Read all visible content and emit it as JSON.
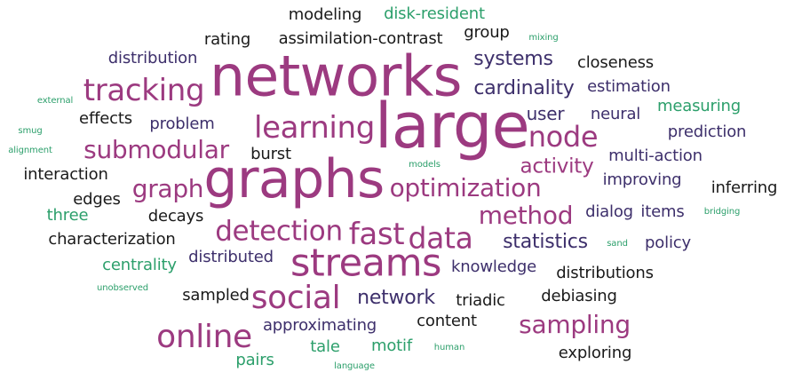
{
  "palette": {
    "purple": "#9c3a80",
    "indigo": "#3d2f6b",
    "dark": "#1a1a1a",
    "green": "#2c9f6b"
  },
  "words": [
    {
      "text": "large",
      "color": "purple",
      "weight": 100
    },
    {
      "text": "networks",
      "color": "purple",
      "weight": 95
    },
    {
      "text": "graphs",
      "color": "purple",
      "weight": 90
    },
    {
      "text": "streams",
      "color": "purple",
      "weight": 72
    },
    {
      "text": "online",
      "color": "purple",
      "weight": 55
    },
    {
      "text": "social",
      "color": "purple",
      "weight": 55
    },
    {
      "text": "tracking",
      "color": "purple",
      "weight": 50
    },
    {
      "text": "learning",
      "color": "purple",
      "weight": 50
    },
    {
      "text": "fast",
      "color": "purple",
      "weight": 50
    },
    {
      "text": "data",
      "color": "purple",
      "weight": 48
    },
    {
      "text": "node",
      "color": "purple",
      "weight": 46
    },
    {
      "text": "detection",
      "color": "purple",
      "weight": 46
    },
    {
      "text": "method",
      "color": "purple",
      "weight": 42
    },
    {
      "text": "optimization",
      "color": "purple",
      "weight": 42
    },
    {
      "text": "submodular",
      "color": "purple",
      "weight": 42
    },
    {
      "text": "graph",
      "color": "purple",
      "weight": 42
    },
    {
      "text": "sampling",
      "color": "purple",
      "weight": 42
    },
    {
      "text": "activity",
      "color": "purple",
      "weight": 36
    },
    {
      "text": "systems",
      "color": "indigo",
      "weight": 34
    },
    {
      "text": "cardinality",
      "color": "indigo",
      "weight": 34
    },
    {
      "text": "statistics",
      "color": "indigo",
      "weight": 34
    },
    {
      "text": "network",
      "color": "indigo",
      "weight": 34
    },
    {
      "text": "user",
      "color": "indigo",
      "weight": 30
    },
    {
      "text": "approximating",
      "color": "indigo",
      "weight": 28
    },
    {
      "text": "distributed",
      "color": "indigo",
      "weight": 28
    },
    {
      "text": "knowledge",
      "color": "indigo",
      "weight": 28
    },
    {
      "text": "distribution",
      "color": "indigo",
      "weight": 28
    },
    {
      "text": "problem",
      "color": "indigo",
      "weight": 28
    },
    {
      "text": "estimation",
      "color": "indigo",
      "weight": 28
    },
    {
      "text": "neural",
      "color": "indigo",
      "weight": 28
    },
    {
      "text": "prediction",
      "color": "indigo",
      "weight": 28
    },
    {
      "text": "multi-action",
      "color": "indigo",
      "weight": 28
    },
    {
      "text": "improving",
      "color": "indigo",
      "weight": 28
    },
    {
      "text": "dialog",
      "color": "indigo",
      "weight": 28
    },
    {
      "text": "items",
      "color": "indigo",
      "weight": 28
    },
    {
      "text": "policy",
      "color": "indigo",
      "weight": 28
    },
    {
      "text": "modeling",
      "color": "dark",
      "weight": 28
    },
    {
      "text": "rating",
      "color": "dark",
      "weight": 28
    },
    {
      "text": "assimilation-contrast",
      "color": "dark",
      "weight": 28
    },
    {
      "text": "group",
      "color": "dark",
      "weight": 28
    },
    {
      "text": "closeness",
      "color": "dark",
      "weight": 28
    },
    {
      "text": "effects",
      "color": "dark",
      "weight": 28
    },
    {
      "text": "burst",
      "color": "dark",
      "weight": 28
    },
    {
      "text": "interaction",
      "color": "dark",
      "weight": 28
    },
    {
      "text": "edges",
      "color": "dark",
      "weight": 28
    },
    {
      "text": "decays",
      "color": "dark",
      "weight": 28
    },
    {
      "text": "characterization",
      "color": "dark",
      "weight": 28
    },
    {
      "text": "sampled",
      "color": "dark",
      "weight": 28
    },
    {
      "text": "triadic",
      "color": "dark",
      "weight": 28
    },
    {
      "text": "content",
      "color": "dark",
      "weight": 28
    },
    {
      "text": "distributions",
      "color": "dark",
      "weight": 28
    },
    {
      "text": "debiasing",
      "color": "dark",
      "weight": 28
    },
    {
      "text": "exploring",
      "color": "dark",
      "weight": 28
    },
    {
      "text": "inferring",
      "color": "dark",
      "weight": 28
    },
    {
      "text": "disk-resident",
      "color": "green",
      "weight": 26
    },
    {
      "text": "measuring",
      "color": "green",
      "weight": 26
    },
    {
      "text": "three",
      "color": "green",
      "weight": 26
    },
    {
      "text": "centrality",
      "color": "green",
      "weight": 26
    },
    {
      "text": "motif",
      "color": "green",
      "weight": 26
    },
    {
      "text": "tale",
      "color": "green",
      "weight": 26
    },
    {
      "text": "pairs",
      "color": "green",
      "weight": 26
    },
    {
      "text": "mixing",
      "color": "green",
      "weight": 8
    },
    {
      "text": "external",
      "color": "green",
      "weight": 8
    },
    {
      "text": "smug",
      "color": "green",
      "weight": 8
    },
    {
      "text": "alignment",
      "color": "green",
      "weight": 8
    },
    {
      "text": "models",
      "color": "green",
      "weight": 8
    },
    {
      "text": "bridging",
      "color": "green",
      "weight": 8
    },
    {
      "text": "sand",
      "color": "green",
      "weight": 8
    },
    {
      "text": "unobserved",
      "color": "green",
      "weight": 8
    },
    {
      "text": "human",
      "color": "green",
      "weight": 8
    },
    {
      "text": "language",
      "color": "green",
      "weight": 8
    }
  ]
}
